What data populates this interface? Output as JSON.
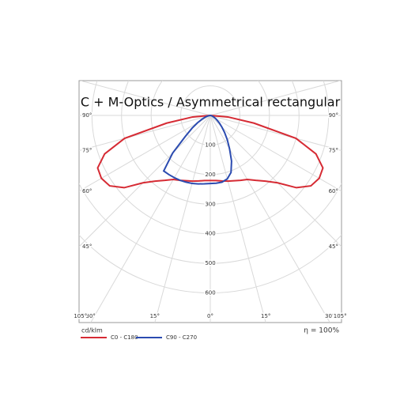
{
  "chart_data": {
    "type": "polar",
    "title": "C + M-Optics / Asymmetrical rectangular",
    "unit_label": "cd/klm",
    "efficiency_label": "η = 100%",
    "angles": [
      -90,
      -85,
      -80,
      -75,
      -70,
      -65,
      -60,
      -55,
      -50,
      -45,
      -40,
      -35,
      -30,
      -25,
      -20,
      -15,
      -10,
      -5,
      0,
      5,
      10,
      15,
      20,
      25,
      30,
      35,
      40,
      45,
      50,
      55,
      60,
      65,
      70,
      75,
      80,
      85,
      90
    ],
    "series": [
      {
        "name": "C0 - C180",
        "color": "#d62b34",
        "values": [
          0,
          60,
          150,
          300,
          380,
          420,
          425,
          415,
          380,
          322,
          290,
          268,
          250,
          242,
          235,
          230,
          225,
          221,
          220,
          221,
          225,
          230,
          235,
          242,
          250,
          268,
          290,
          322,
          380,
          415,
          425,
          420,
          380,
          300,
          150,
          60,
          0
        ]
      },
      {
        "name": "C90 - C270",
        "color": "#2b4bb0",
        "values": [
          0,
          2,
          5,
          12,
          20,
          32,
          50,
          75,
          110,
          180,
          245,
          244,
          243,
          242,
          240,
          238,
          235,
          232,
          230,
          230,
          229,
          222,
          205,
          170,
          130,
          100,
          75,
          55,
          40,
          28,
          20,
          13,
          8,
          5,
          3,
          1,
          0
        ]
      }
    ],
    "rlim": [
      0,
      700
    ],
    "rticks": [
      100,
      200,
      300,
      400,
      500,
      600
    ],
    "angleticks": [
      {
        "value": 0,
        "label": "0°"
      },
      {
        "value": 15,
        "label": "15°"
      },
      {
        "value": 30,
        "label": "30°"
      },
      {
        "value": 45,
        "label": "45°"
      },
      {
        "value": 60,
        "label": "60°"
      },
      {
        "value": 75,
        "label": "75°"
      },
      {
        "value": 90,
        "label": "90°"
      },
      {
        "value": 105,
        "label": "105°"
      }
    ],
    "grid": true
  }
}
